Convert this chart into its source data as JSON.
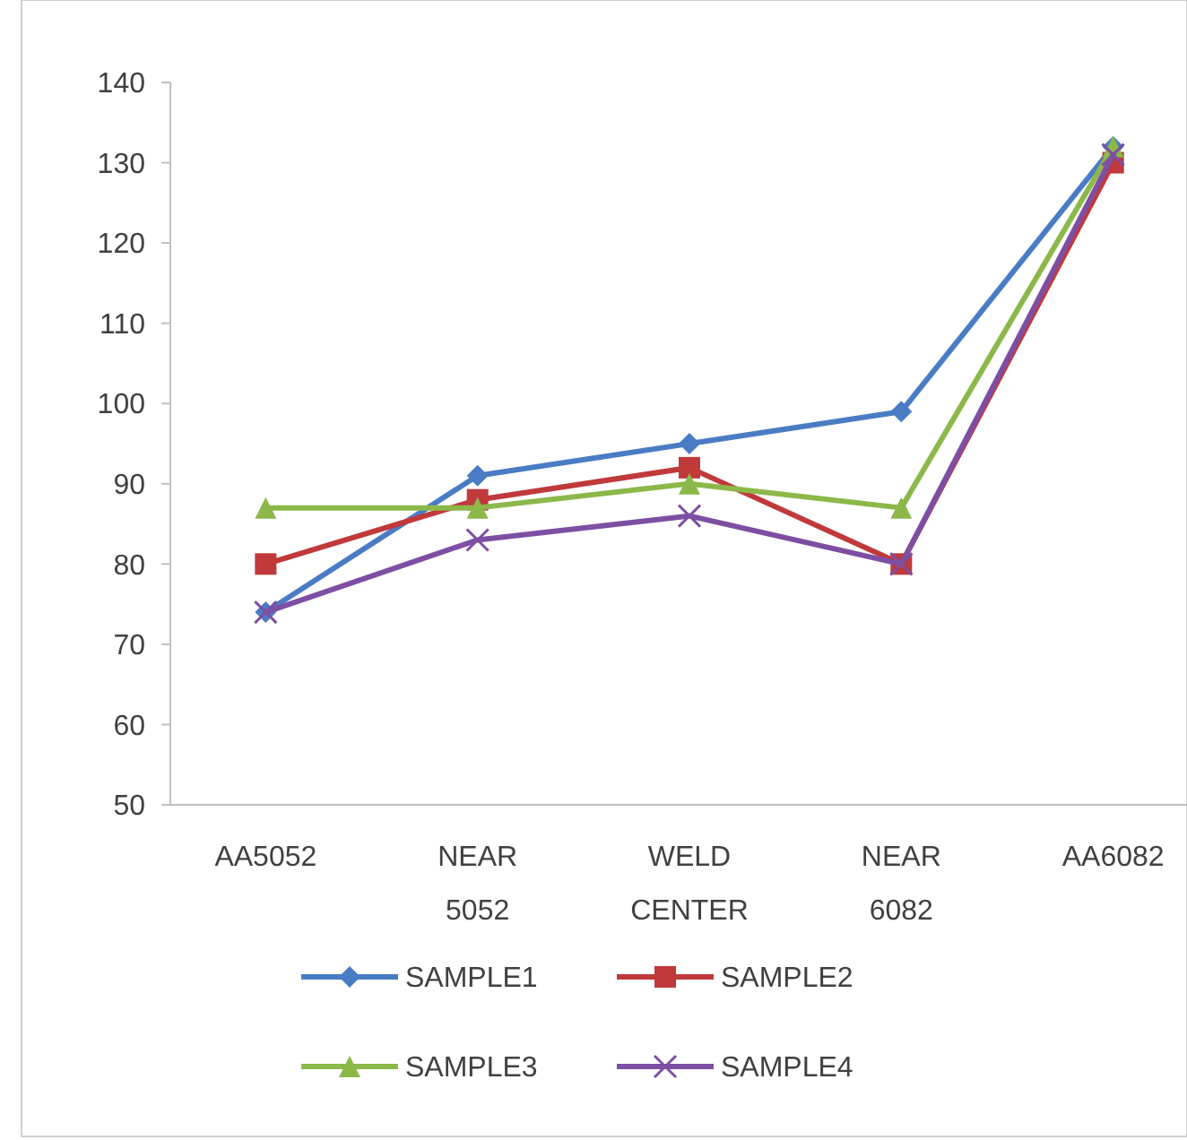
{
  "chart_data": {
    "type": "line",
    "categories": [
      "AA5052",
      "NEAR 5052",
      "WELD CENTER",
      "NEAR 6082",
      "AA6082"
    ],
    "series": [
      {
        "name": "SAMPLE1",
        "color": "#4a7cc4",
        "marker": "diamond",
        "values": [
          74,
          91,
          95,
          99,
          132
        ]
      },
      {
        "name": "SAMPLE2",
        "color": "#c0393b",
        "marker": "square",
        "values": [
          80,
          88,
          92,
          80,
          130
        ]
      },
      {
        "name": "SAMPLE3",
        "color": "#8cb84a",
        "marker": "triangle",
        "values": [
          87,
          87,
          90,
          87,
          132
        ]
      },
      {
        "name": "SAMPLE4",
        "color": "#7d4fa3",
        "marker": "cross",
        "values": [
          74,
          83,
          86,
          80,
          131
        ]
      }
    ],
    "ylim": [
      50,
      140
    ],
    "yticks": [
      50,
      60,
      70,
      80,
      90,
      100,
      110,
      120,
      130,
      140
    ],
    "grid": false,
    "legend": "bottom",
    "line_style": "solid"
  }
}
